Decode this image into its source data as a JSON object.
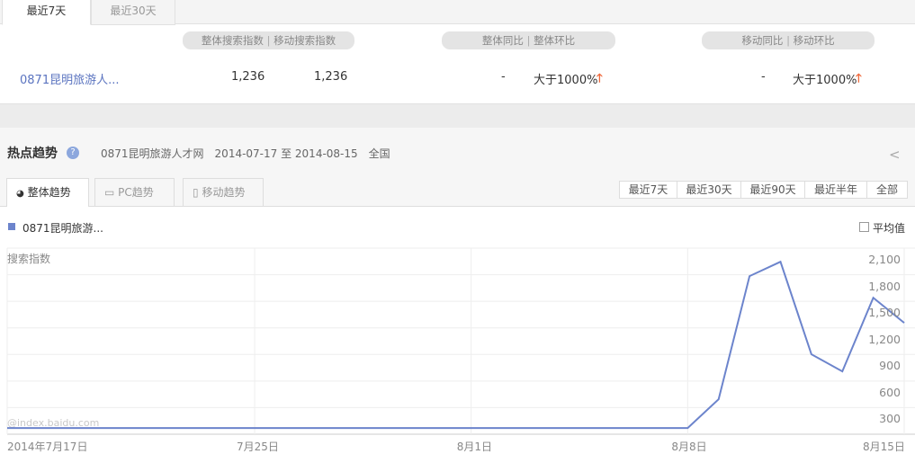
{
  "top_tabs": [
    "最近7天",
    "最近30天"
  ],
  "headers": {
    "search": "整体搜索指数",
    "mobile_search": "移动搜索指数",
    "overall_yoy": "整体同比",
    "overall_mom": "整体环比",
    "mobile_yoy": "移动同比",
    "mobile_mom": "移动环比",
    "divider": "|"
  },
  "row": {
    "keyword": "0871昆明旅游人...",
    "overall_index": "1,236",
    "mobile_index": "1,236",
    "overall_yoy": "-",
    "overall_mom": "大于1000%",
    "mobile_yoy": "-",
    "mobile_mom": "大于1000%"
  },
  "trend": {
    "title": "热点趋势",
    "keyword": "0871昆明旅游人才网",
    "date_range": "2014-07-17 至 2014-08-15",
    "region": "全国"
  },
  "chart_tabs": [
    "整体趋势",
    "PC趋势",
    "移动趋势"
  ],
  "ranges": [
    "最近7天",
    "最近30天",
    "最近90天",
    "最近半年",
    "全部"
  ],
  "legend": "0871昆明旅游...",
  "avg_label": "平均值",
  "watermark": "@index.baidu.com",
  "colors": {
    "line": "#6c84cc",
    "up_arrow": "#f0693c",
    "link": "#5b74c0"
  },
  "chart_data": {
    "type": "line",
    "ylabel": "搜索指数",
    "ylim": [
      0,
      2100
    ],
    "y_ticks": [
      "300",
      "600",
      "900",
      "1,200",
      "1,500",
      "1,800",
      "2,100"
    ],
    "x_ticks": [
      "2014年7月17日",
      "7月25日",
      "8月1日",
      "8月8日",
      "8月15日"
    ],
    "x": [
      "2014-07-17",
      "2014-07-18",
      "2014-07-19",
      "2014-07-20",
      "2014-07-21",
      "2014-07-22",
      "2014-07-23",
      "2014-07-24",
      "2014-07-25",
      "2014-07-26",
      "2014-07-27",
      "2014-07-28",
      "2014-07-29",
      "2014-07-30",
      "2014-07-31",
      "2014-08-01",
      "2014-08-02",
      "2014-08-03",
      "2014-08-04",
      "2014-08-05",
      "2014-08-06",
      "2014-08-07",
      "2014-08-08",
      "2014-08-09",
      "2014-08-10",
      "2014-08-11",
      "2014-08-12",
      "2014-08-13",
      "2014-08-14",
      "2014-08-15"
    ],
    "series": [
      {
        "name": "0871昆明旅游...",
        "values": [
          70,
          70,
          70,
          70,
          70,
          70,
          70,
          70,
          70,
          70,
          70,
          70,
          70,
          70,
          70,
          70,
          70,
          70,
          70,
          70,
          70,
          70,
          70,
          395,
          1784,
          1946,
          902,
          709,
          1540,
          1257
        ]
      }
    ],
    "grid": true
  }
}
